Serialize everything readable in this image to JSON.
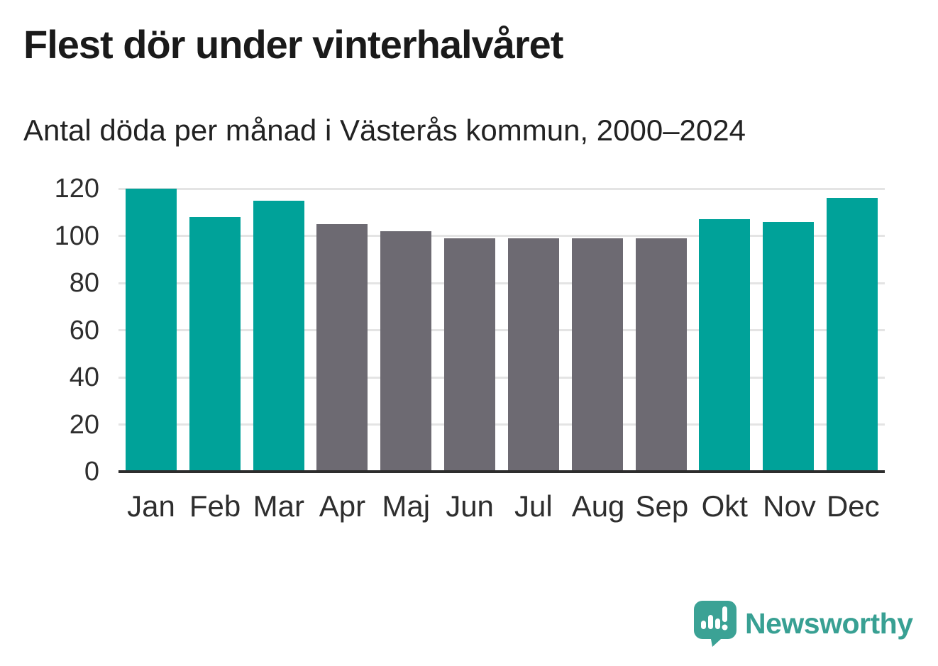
{
  "title": "Flest dör under vinterhalvåret",
  "subtitle": "Antal döda per månad i Västerås kommun, 2000–2024",
  "brand": {
    "name": "Newsworthy",
    "icon": "bar-chart-speech-bubble-icon",
    "color": "#38a093"
  },
  "colors": {
    "winter_bar": "#00a299",
    "summer_bar": "#6d6a72",
    "gridline": "#e4e4e4",
    "axis_line": "#2d2d2d",
    "tick_text": "#2e2e2e",
    "title_text": "#1a1a1a",
    "subtitle_text": "#222222"
  },
  "chart_data": {
    "type": "bar",
    "title": "Flest dör under vinterhalvåret",
    "subtitle": "Antal döda per månad i Västerås kommun, 2000–2024",
    "categories": [
      "Jan",
      "Feb",
      "Mar",
      "Apr",
      "Maj",
      "Jun",
      "Jul",
      "Aug",
      "Sep",
      "Okt",
      "Nov",
      "Dec"
    ],
    "values": [
      120,
      108,
      115,
      105,
      102,
      99,
      99,
      99,
      99,
      107,
      106,
      116
    ],
    "bar_colors": [
      "winter",
      "winter",
      "winter",
      "summer",
      "summer",
      "summer",
      "summer",
      "summer",
      "summer",
      "winter",
      "winter",
      "winter"
    ],
    "color_map": {
      "winter": "#00a299",
      "summer": "#6d6a72"
    },
    "xlabel": "",
    "ylabel": "",
    "ylim": [
      0,
      120
    ],
    "yticks": [
      0,
      20,
      40,
      60,
      80,
      100,
      120
    ],
    "grid": true,
    "legend": false
  }
}
